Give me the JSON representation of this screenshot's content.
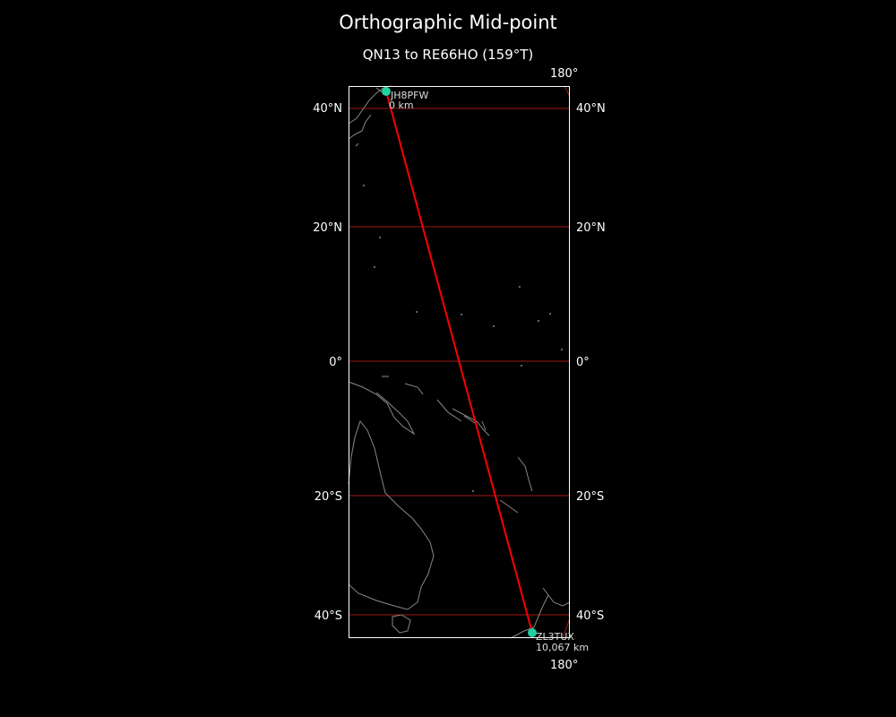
{
  "title": "Orthographic Mid-point",
  "subtitle": "QN13 to RE66HO (159°T)",
  "colors": {
    "background": "#000000",
    "path": "#ff0000",
    "gridlines": "#a01818",
    "coast": "#888888",
    "station": "#20d0a0",
    "frame": "#ffffff"
  },
  "longitude_labels": {
    "top": "180°",
    "bottom": "180°"
  },
  "latitude_labels": [
    "40°N",
    "20°N",
    "0°",
    "20°S",
    "40°S"
  ],
  "stations": {
    "start": {
      "call": "JH8PFW",
      "distance": "0 km"
    },
    "end": {
      "call": "ZL3TUX",
      "distance": "10,067 km"
    }
  }
}
